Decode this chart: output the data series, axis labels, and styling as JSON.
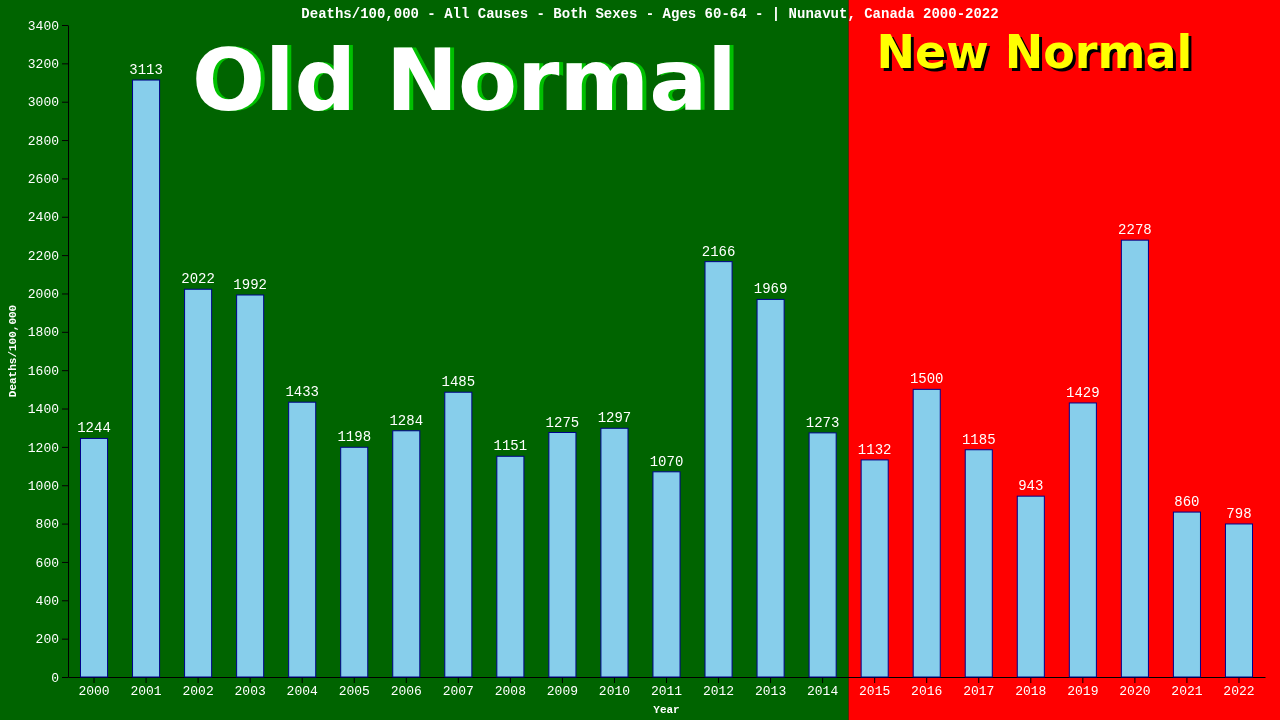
{
  "chart_data": {
    "type": "bar",
    "title": "Deaths/100,000 - All Causes - Both Sexes - Ages 60-64 -  | Nunavut, Canada 2000-2022",
    "xlabel": "Year",
    "ylabel": "Deaths/100,000",
    "categories": [
      "2000",
      "2001",
      "2002",
      "2003",
      "2004",
      "2005",
      "2006",
      "2007",
      "2008",
      "2009",
      "2010",
      "2011",
      "2012",
      "2013",
      "2014",
      "2015",
      "2016",
      "2017",
      "2018",
      "2019",
      "2020",
      "2021",
      "2022"
    ],
    "values": [
      1244,
      3113,
      2022,
      1992,
      1433,
      1198,
      1284,
      1485,
      1151,
      1275,
      1297,
      1070,
      2166,
      1969,
      1273,
      1132,
      1500,
      1185,
      943,
      1429,
      2278,
      860,
      798
    ],
    "color": "#87ceeb",
    "ylim": [
      0,
      3400
    ],
    "yticks": [
      0,
      200,
      400,
      600,
      800,
      1000,
      1200,
      1400,
      1600,
      1800,
      2000,
      2200,
      2400,
      2600,
      2800,
      3000,
      3200,
      3400
    ],
    "data_labels": true,
    "grid": false,
    "bands": [
      {
        "axis": "x",
        "from": "2000",
        "to": "2014",
        "label": "Old Normal",
        "color": "#006400"
      },
      {
        "axis": "x",
        "from": "2014",
        "to": "2022",
        "label": "New Normal",
        "color": "#ff0000"
      }
    ]
  }
}
